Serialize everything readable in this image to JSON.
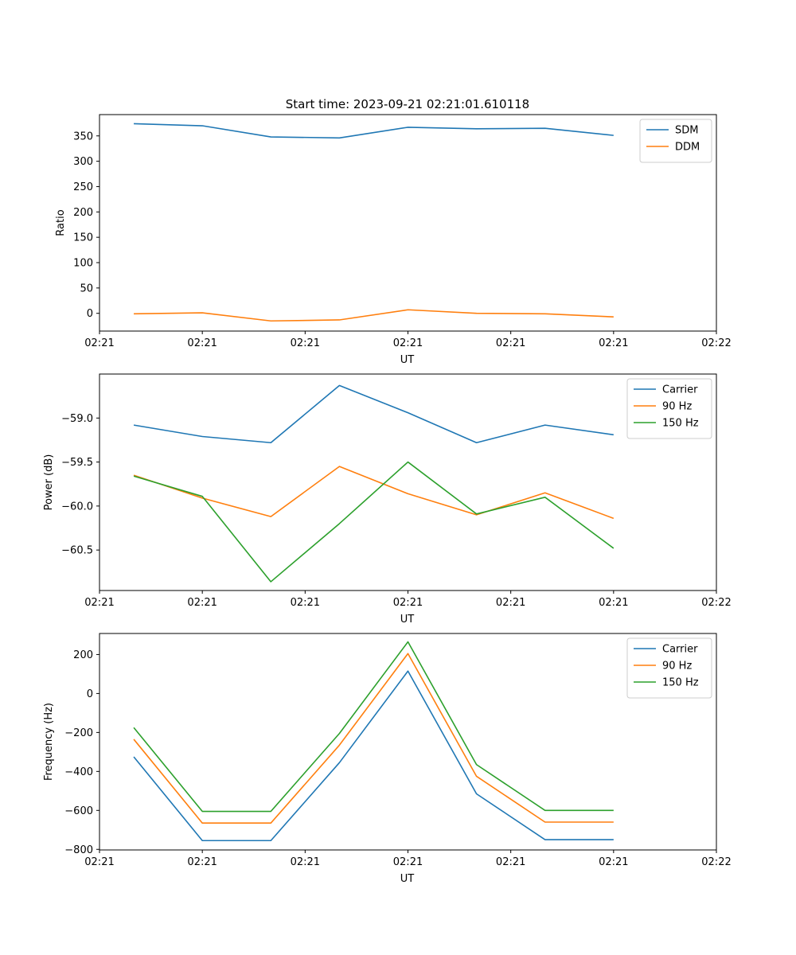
{
  "title": "Start time: 2023-09-21 02:21:01.610118",
  "chart_data": [
    {
      "type": "line",
      "title": "Start time: 2023-09-21 02:21:01.610118",
      "xlabel": "UT",
      "ylabel": "Ratio",
      "x": [
        1,
        2,
        3,
        4,
        5,
        6,
        7,
        8
      ],
      "xlim": [
        0.5,
        9.5
      ],
      "x_ticks": [
        0.5,
        2,
        3.5,
        5,
        6.5,
        8,
        9.5
      ],
      "x_tick_labels": [
        "02:21",
        "02:21",
        "02:21",
        "02:21",
        "02:21",
        "02:21",
        "02:22"
      ],
      "ylim": [
        -35,
        392
      ],
      "y_ticks": [
        0,
        50,
        100,
        150,
        200,
        250,
        300,
        350
      ],
      "y_tick_labels": [
        "0",
        "50",
        "100",
        "150",
        "200",
        "250",
        "300",
        "350"
      ],
      "legend": "top-right",
      "series": [
        {
          "name": "SDM",
          "color": "#1f77b4",
          "values": [
            374,
            370,
            348,
            346,
            367,
            364,
            365,
            351
          ]
        },
        {
          "name": "DDM",
          "color": "#ff7f0e",
          "values": [
            -1,
            1,
            -15,
            -13,
            7,
            0,
            -1,
            -7
          ]
        }
      ]
    },
    {
      "type": "line",
      "xlabel": "UT",
      "ylabel": "Power (dB)",
      "x": [
        1,
        2,
        3,
        4,
        5,
        6,
        7,
        8
      ],
      "xlim": [
        0.5,
        9.5
      ],
      "x_ticks": [
        0.5,
        2,
        3.5,
        5,
        6.5,
        8,
        9.5
      ],
      "x_tick_labels": [
        "02:21",
        "02:21",
        "02:21",
        "02:21",
        "02:21",
        "02:21",
        "02:22"
      ],
      "ylim": [
        -60.96,
        -58.5
      ],
      "y_ticks": [
        -59.0,
        -59.5,
        -60.0,
        -60.5
      ],
      "y_tick_labels": [
        "−59.0",
        "−59.5",
        "−60.0",
        "−60.5"
      ],
      "legend": "top-right",
      "series": [
        {
          "name": "Carrier",
          "color": "#1f77b4",
          "values": [
            -59.08,
            -59.21,
            -59.28,
            -58.63,
            -58.94,
            -59.28,
            -59.08,
            -59.19
          ]
        },
        {
          "name": "90 Hz",
          "color": "#ff7f0e",
          "values": [
            -59.65,
            -59.91,
            -60.12,
            -59.55,
            -59.86,
            -60.1,
            -59.85,
            -60.14
          ]
        },
        {
          "name": "150 Hz",
          "color": "#2ca02c",
          "values": [
            -59.66,
            -59.89,
            -60.86,
            -60.2,
            -59.5,
            -60.09,
            -59.9,
            -60.48
          ]
        }
      ]
    },
    {
      "type": "line",
      "xlabel": "UT",
      "ylabel": "Frequency (Hz)",
      "x": [
        1,
        2,
        3,
        4,
        5,
        6,
        7,
        8
      ],
      "xlim": [
        0.5,
        9.5
      ],
      "x_ticks": [
        0.5,
        2,
        3.5,
        5,
        6.5,
        8,
        9.5
      ],
      "x_tick_labels": [
        "02:21",
        "02:21",
        "02:21",
        "02:21",
        "02:21",
        "02:21",
        "02:22"
      ],
      "ylim": [
        -803,
        308
      ],
      "y_ticks": [
        200,
        0,
        -200,
        -400,
        -600,
        -800
      ],
      "y_tick_labels": [
        "200",
        "0",
        "−200",
        "−400",
        "−600",
        "−800"
      ],
      "legend": "top-right",
      "series": [
        {
          "name": "Carrier",
          "color": "#1f77b4",
          "values": [
            -325,
            -755,
            -755,
            -355,
            115,
            -515,
            -750,
            -750
          ]
        },
        {
          "name": "90 Hz",
          "color": "#ff7f0e",
          "values": [
            -235,
            -665,
            -665,
            -265,
            205,
            -425,
            -660,
            -660
          ]
        },
        {
          "name": "150 Hz",
          "color": "#2ca02c",
          "values": [
            -175,
            -605,
            -605,
            -205,
            265,
            -365,
            -600,
            -600
          ]
        }
      ]
    }
  ]
}
